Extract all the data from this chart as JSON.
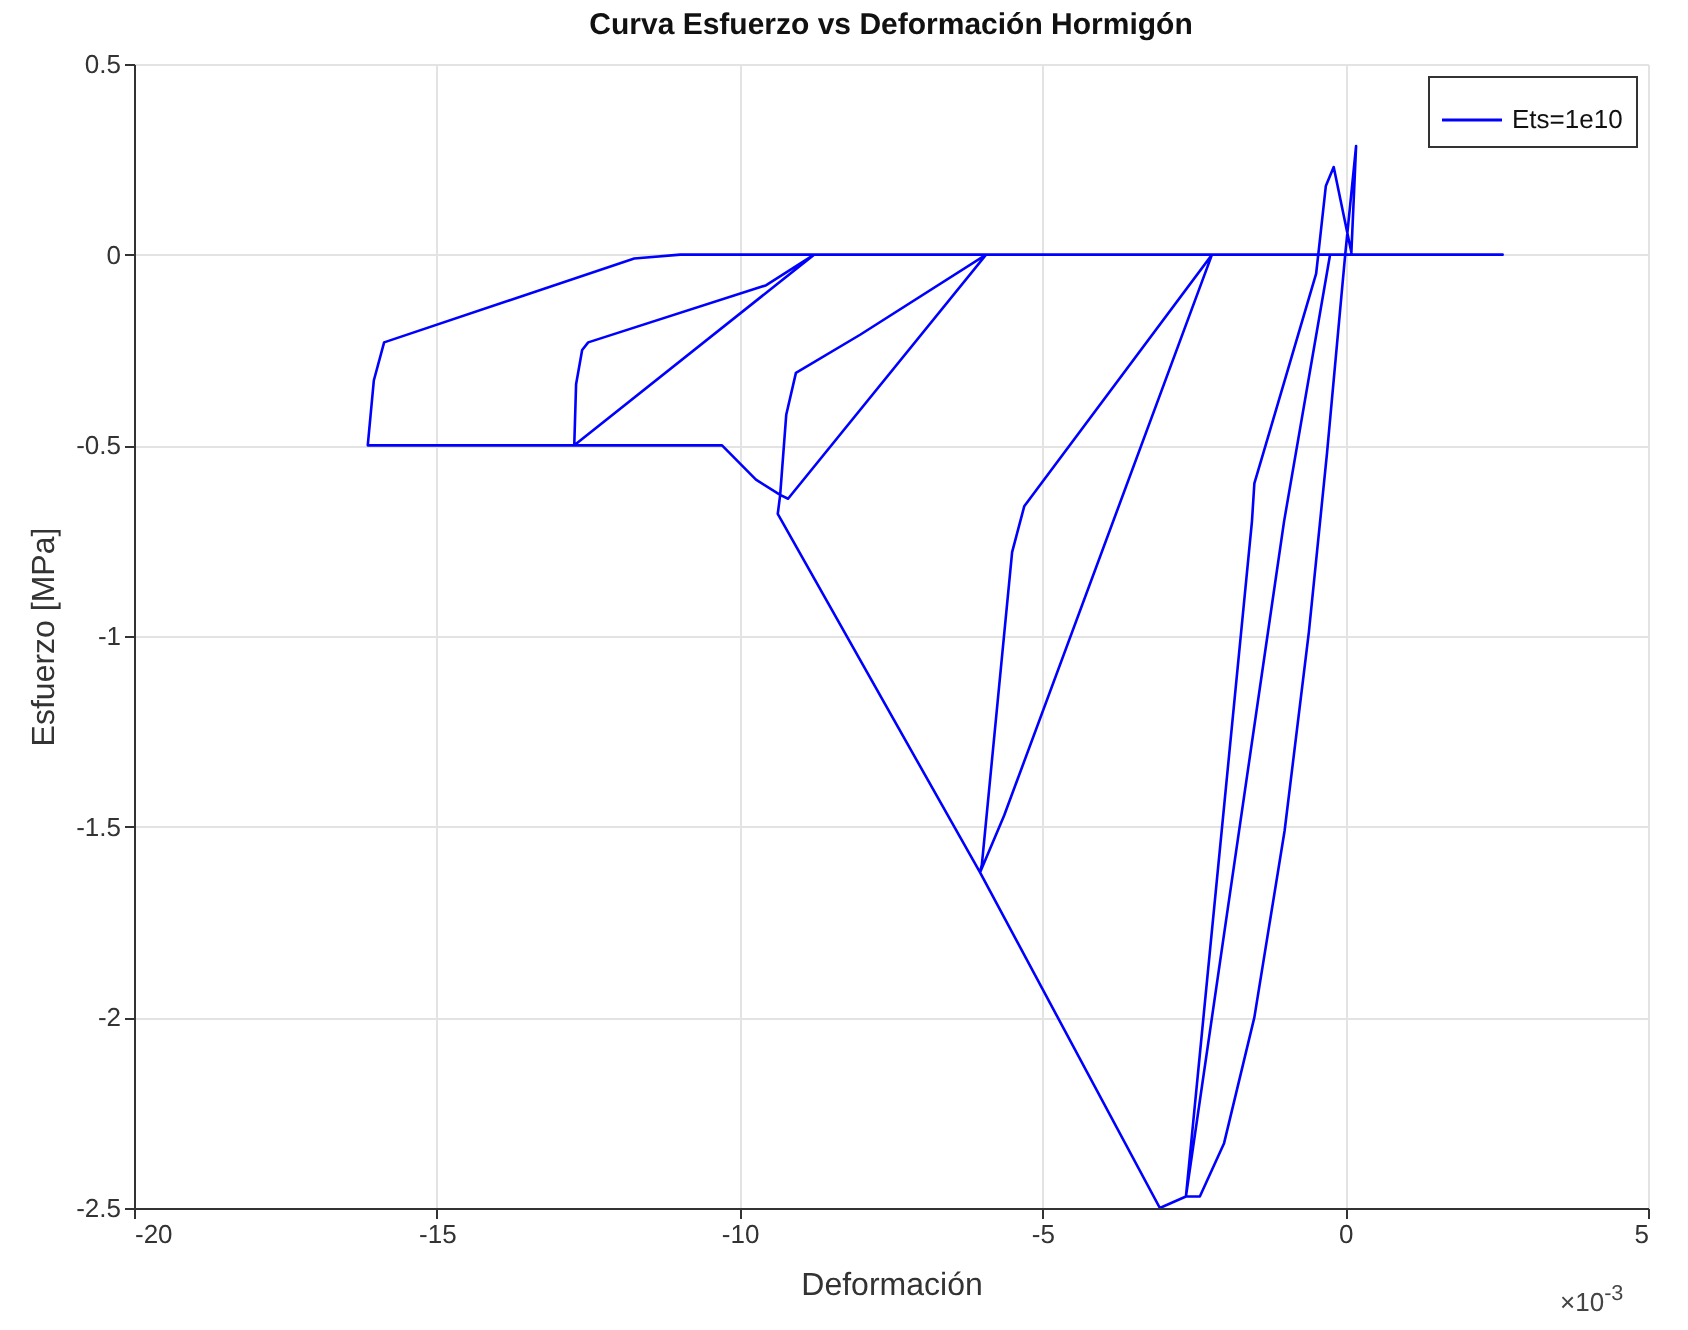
{
  "chart_data": {
    "type": "line",
    "title": "Curva Esfuerzo vs Deformación Hormigón",
    "xlabel": "Deformación",
    "ylabel": "Esfuerzo [MPa]",
    "xlim": [
      -20,
      5
    ],
    "xticks": [
      -20,
      -15,
      -10,
      -5,
      0,
      5
    ],
    "ylim": [
      -2.5,
      0.5
    ],
    "yticks": [
      -2.5,
      -2,
      -1.5,
      -1,
      -0.5,
      0,
      0.5
    ],
    "grid": true,
    "legend": "top right",
    "annotations": [
      "×10$^{-3}$"
    ],
    "series": [
      {
        "name": "Ets=1e10",
        "color": "#0000ff",
        "x": [
          0,
          0.18,
          0.1,
          2.6,
          0,
          -0.3,
          -0.6,
          -1,
          -1.5,
          -2,
          -2.4,
          -2.63,
          -1.01,
          -0.25,
          0.11,
          -0.19,
          -0.32,
          -0.41,
          -0.48,
          -1.5,
          -1.54,
          -2.63,
          -3.06,
          -6.03,
          -5.63,
          -2.2,
          -5.3,
          -5.5,
          -6,
          -6.03,
          -9.37,
          -9.33,
          -9.2,
          -5.93,
          -8.01,
          -9.07,
          -9.23,
          -9.33,
          -9.73,
          -10.29,
          -12.73,
          -8.77,
          -9.56,
          -12.5,
          -12.6,
          -12.7,
          -12.73,
          -16.14,
          -16.04,
          -15.87,
          -11.74,
          -10.98,
          2.6
        ],
        "values": [
          0,
          0.285,
          0,
          0,
          0,
          -0.52,
          -0.99,
          -1.51,
          -2,
          -2.33,
          -2.47,
          -2.47,
          -0.7,
          0,
          0,
          0.23,
          0.18,
          0.05,
          -0.05,
          -0.6,
          -0.7,
          -2.47,
          -2.5,
          -1.62,
          -1.47,
          0,
          -0.66,
          -0.78,
          -1.6,
          -1.62,
          -0.68,
          -0.63,
          -0.64,
          0,
          -0.21,
          -0.31,
          -0.42,
          -0.63,
          -0.59,
          -0.5,
          -0.5,
          0,
          -0.08,
          -0.23,
          -0.25,
          -0.34,
          -0.5,
          -0.5,
          -0.33,
          -0.23,
          -0.01,
          0,
          0
        ]
      }
    ]
  }
}
